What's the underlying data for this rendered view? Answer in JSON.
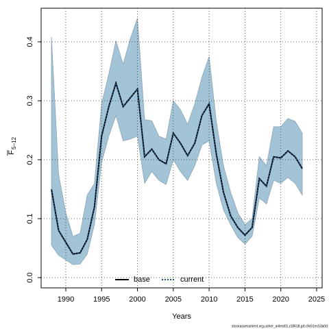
{
  "chart_data": {
    "type": "line",
    "xlabel": "Years",
    "ylabel": "F",
    "ylabel_sub": "5−12",
    "footnote": "stockassessment.org,usher_anlest01,r18618,git:c9c61ec53a0d",
    "x": [
      1988,
      1989,
      1990,
      1991,
      1992,
      1993,
      1994,
      1995,
      1996,
      1997,
      1998,
      1999,
      2000,
      2001,
      2002,
      2003,
      2004,
      2005,
      2006,
      2007,
      2008,
      2009,
      2010,
      2011,
      2012,
      2013,
      2014,
      2015,
      2016,
      2017,
      2018,
      2019,
      2020,
      2021,
      2022,
      2023
    ],
    "series": [
      {
        "name": "base",
        "color": "#000000",
        "style": "solid",
        "values": [
          0.15,
          0.08,
          0.06,
          0.04,
          0.042,
          0.065,
          0.12,
          0.24,
          0.29,
          0.33,
          0.29,
          0.305,
          0.32,
          0.205,
          0.218,
          0.2,
          0.193,
          0.245,
          0.228,
          0.207,
          0.228,
          0.275,
          0.295,
          0.21,
          0.145,
          0.105,
          0.085,
          0.072,
          0.085,
          0.168,
          0.155,
          0.205,
          0.203,
          0.215,
          0.205,
          0.185
        ]
      },
      {
        "name": "current",
        "color": "#1f4e79",
        "style": "dotted",
        "values": [
          0.15,
          0.08,
          0.06,
          0.04,
          0.042,
          0.065,
          0.12,
          0.24,
          0.29,
          0.33,
          0.29,
          0.305,
          0.32,
          0.205,
          0.218,
          0.2,
          0.193,
          0.245,
          0.228,
          0.207,
          0.228,
          0.275,
          0.295,
          0.21,
          0.145,
          0.105,
          0.085,
          0.072,
          0.085,
          0.168,
          0.155,
          0.205,
          0.203,
          0.215,
          0.205,
          0.185
        ],
        "upper": [
          0.408,
          0.175,
          0.11,
          0.07,
          0.075,
          0.14,
          0.16,
          0.295,
          0.345,
          0.402,
          0.362,
          0.405,
          0.44,
          0.268,
          0.266,
          0.24,
          0.235,
          0.3,
          0.285,
          0.26,
          0.295,
          0.34,
          0.375,
          0.265,
          0.19,
          0.145,
          0.11,
          0.09,
          0.1,
          0.205,
          0.19,
          0.256,
          0.256,
          0.27,
          0.265,
          0.245
        ],
        "lower": [
          0.055,
          0.038,
          0.03,
          0.022,
          0.023,
          0.04,
          0.09,
          0.195,
          0.24,
          0.275,
          0.232,
          0.235,
          0.24,
          0.16,
          0.18,
          0.165,
          0.158,
          0.2,
          0.18,
          0.165,
          0.19,
          0.225,
          0.232,
          0.16,
          0.115,
          0.09,
          0.068,
          0.057,
          0.07,
          0.135,
          0.125,
          0.165,
          0.16,
          0.17,
          0.16,
          0.14
        ],
        "band_color": "#a3c3d6"
      }
    ],
    "xlim": [
      1986.56,
      2025.77
    ],
    "ylim": [
      -0.0174,
      0.457
    ],
    "xticks": [
      1990,
      1995,
      2000,
      2005,
      2010,
      2015,
      2020,
      2025
    ],
    "yticks": [
      {
        "value": 0.0,
        "label": "0.0"
      },
      0.1,
      0.2,
      0.3,
      0.4
    ],
    "grid": true,
    "legend": "bottom"
  }
}
